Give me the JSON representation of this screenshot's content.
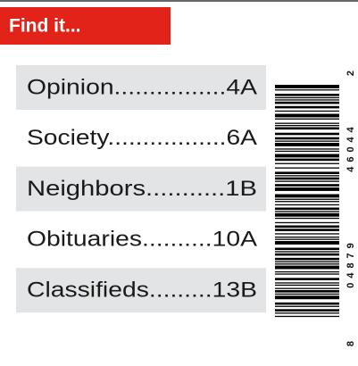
{
  "header": {
    "title": "Find it..."
  },
  "index": [
    {
      "label": "Opinion................4A"
    },
    {
      "label": "Society.................6A"
    },
    {
      "label": "Neighbors...........1B"
    },
    {
      "label": "Obituaries..........10A"
    },
    {
      "label": "Classifieds.........13B"
    }
  ],
  "barcode": {
    "lead": "8",
    "left": "04879",
    "right": "46044",
    "check": "2"
  }
}
